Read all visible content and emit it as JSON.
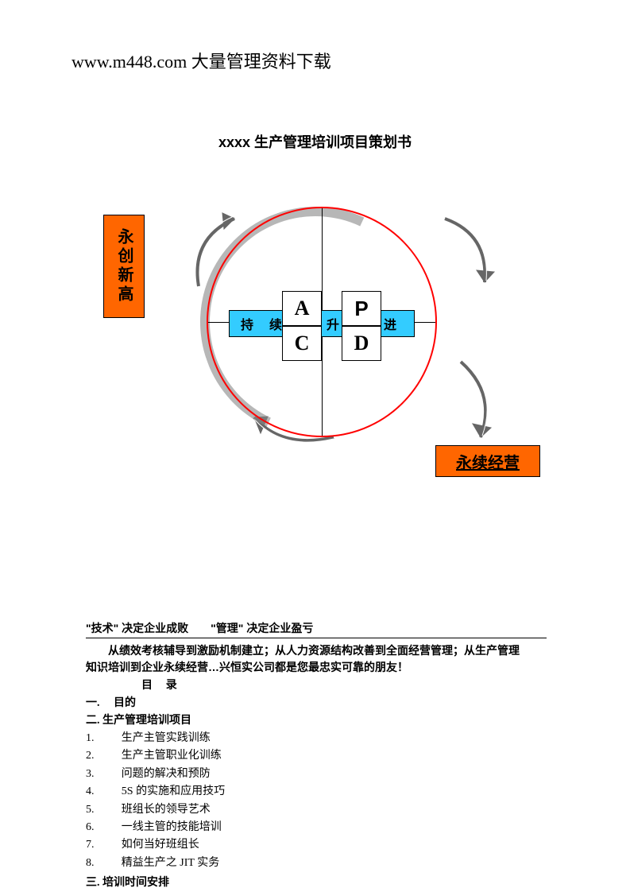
{
  "header": "www.m448.com 大量管理资料下载",
  "title": "xxxx 生产管理培训项目策划书",
  "diagram": {
    "left_box_text": "永创新高",
    "right_box_text": "永续经营",
    "blue_bar_text": "持 续 提 升 改 进",
    "quad_a": "A",
    "quad_p": "P",
    "quad_c": "C",
    "quad_d": "D",
    "colors": {
      "orange": "#ff6600",
      "blue": "#33ccff",
      "circle": "#ff0000",
      "shadow": "#888888",
      "arrow": "#666666"
    }
  },
  "slogan": "\"技术\" 决定企业成败  \"管理\"  决定企业盈亏",
  "intro_line1": "从绩效考核辅导到激励机制建立；从人力资源结构改善到全面经营管理；从生产管理",
  "intro_line2": "知识培训到企业永续经营…兴恒实公司都是您最忠实可靠的朋友！",
  "toc_head": "目录",
  "sec1": "一.  目的",
  "sec2": "二. 生产管理培训项目",
  "items": [
    {
      "n": "1.",
      "t": "生产主管实践训练"
    },
    {
      "n": "2.",
      "t": "生产主管职业化训练"
    },
    {
      "n": "3.",
      "t": "问题的解决和预防"
    },
    {
      "n": "4.",
      "t": "5S 的实施和应用技巧"
    },
    {
      "n": "5.",
      "t": "班组长的领导艺术"
    },
    {
      "n": "6.",
      "t": "一线主管的技能培训"
    },
    {
      "n": "7.",
      "t": "如何当好班组长"
    },
    {
      "n": "8.",
      "t": "精益生产之 JIT 实务"
    }
  ],
  "sec3": "三. 培训时间安排"
}
